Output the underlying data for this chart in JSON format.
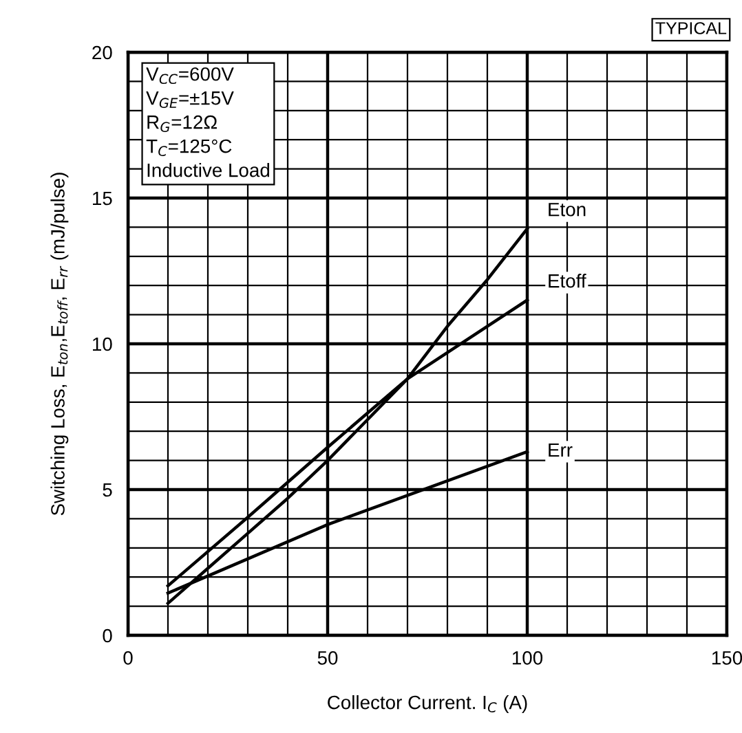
{
  "chart_data": {
    "type": "line",
    "xlabel": "Collector Current. I$_{C}$ (A)",
    "ylabel": "Switching Loss, E$_{ton}$,E$_{toff}$, E$_{rr}$ (mJ/pulse)",
    "annotations": [
      "TYPICAL",
      "V$_{CC}$=600V\nV$_{GE}$=±15V\nR$_{G}$=12Ω\nT$_{C}$=125°C\nInductive Load"
    ],
    "series": [
      {
        "name": "Eton",
        "color": "#000000",
        "x": [
          10,
          20,
          30,
          40,
          50,
          60,
          70,
          80,
          90,
          100
        ],
        "values": [
          1.1,
          2.3,
          3.5,
          4.7,
          6.0,
          7.4,
          8.8,
          10.6,
          12.2,
          13.95
        ]
      },
      {
        "name": "Etoff",
        "color": "#000000",
        "x": [
          10,
          30,
          50,
          70,
          100
        ],
        "values": [
          1.7,
          4.05,
          6.45,
          8.8,
          11.5
        ]
      },
      {
        "name": "Err",
        "color": "#000000",
        "x": [
          10,
          50,
          100
        ],
        "values": [
          1.45,
          3.8,
          6.3
        ]
      }
    ],
    "xlim": [
      0,
      150
    ],
    "ylim": [
      0,
      20
    ],
    "xticks": [
      0,
      50,
      100,
      150
    ],
    "yticks": [
      0,
      5,
      10,
      15,
      20
    ],
    "grid": true,
    "line_style": "solid",
    "marker": "none"
  }
}
